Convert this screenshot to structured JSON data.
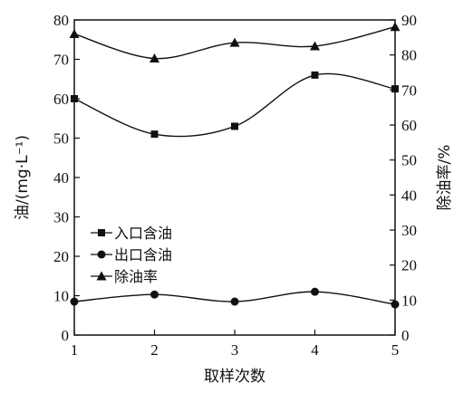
{
  "chart_data": {
    "type": "line",
    "x": [
      1,
      2,
      3,
      4,
      5
    ],
    "xlabel": "取样次数",
    "ylabel_left": "油/(mg·L⁻¹)",
    "ylabel_right": "除油率/%",
    "ylim_left": [
      0,
      80
    ],
    "ylim_right": [
      0,
      90
    ],
    "yticks_left": [
      0,
      10,
      20,
      30,
      40,
      50,
      60,
      70,
      80
    ],
    "yticks_right": [
      0,
      10,
      20,
      30,
      40,
      50,
      60,
      70,
      80,
      90
    ],
    "xticks": [
      1,
      2,
      3,
      4,
      5
    ],
    "grid": false,
    "legend_position": "lower-left",
    "series": [
      {
        "name": "入口含油",
        "marker": "square",
        "axis": "left",
        "values": [
          60,
          51,
          53,
          66,
          62.5
        ]
      },
      {
        "name": "出口含油",
        "marker": "circle",
        "axis": "left",
        "values": [
          8.5,
          10.3,
          8.5,
          11,
          7.8
        ]
      },
      {
        "name": "除油率",
        "marker": "triangle",
        "axis": "right",
        "values": [
          86,
          79,
          83.5,
          82.5,
          88
        ]
      }
    ]
  }
}
